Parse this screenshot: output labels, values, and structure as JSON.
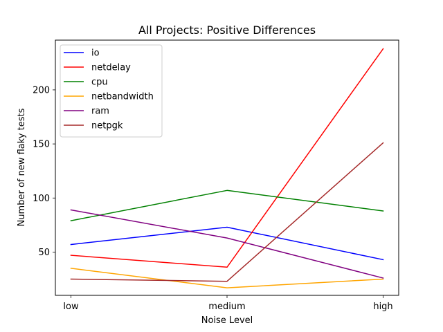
{
  "chart_data": {
    "type": "line",
    "title": "All Projects: Positive Differences",
    "xlabel": "Noise Level",
    "ylabel": "Number of new flaky tests",
    "categories": [
      "low",
      "medium",
      "high"
    ],
    "ylim": [
      10,
      246
    ],
    "yticks": [
      50,
      100,
      150,
      200
    ],
    "grid": false,
    "legend_position": "upper-left",
    "series": [
      {
        "name": "io",
        "color": "#0000ff",
        "values": [
          57,
          73,
          43
        ]
      },
      {
        "name": "netdelay",
        "color": "#ff0000",
        "values": [
          47,
          36,
          238
        ]
      },
      {
        "name": "cpu",
        "color": "#008000",
        "values": [
          79,
          107,
          88
        ]
      },
      {
        "name": "netbandwidth",
        "color": "#ffa500",
        "values": [
          35,
          17,
          25
        ]
      },
      {
        "name": "ram",
        "color": "#800080",
        "values": [
          89,
          63,
          26
        ]
      },
      {
        "name": "netpgk",
        "color": "#a52a2a",
        "values": [
          25,
          23,
          151
        ]
      }
    ]
  }
}
